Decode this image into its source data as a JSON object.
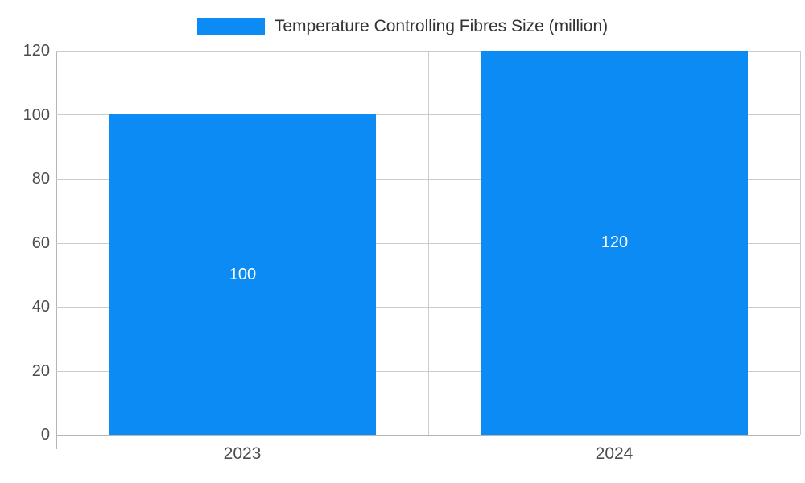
{
  "chart_data": {
    "type": "bar",
    "title": "Temperature Controlling Fibres Size (million)",
    "categories": [
      "2023",
      "2024"
    ],
    "series": [
      {
        "name": "Temperature Controlling Fibres Size (million)",
        "values": [
          100,
          120
        ]
      }
    ],
    "ylim": [
      0,
      120
    ],
    "yticks": [
      0,
      20,
      40,
      60,
      80,
      100,
      120
    ],
    "grid": true,
    "legend_position": "top",
    "bar_color": "#0d8bf5",
    "value_label_color": "#ffffff",
    "axis_color": "#b5b5b5",
    "grid_color": "#cccccc",
    "tick_label_color": "#4d4d4d"
  }
}
